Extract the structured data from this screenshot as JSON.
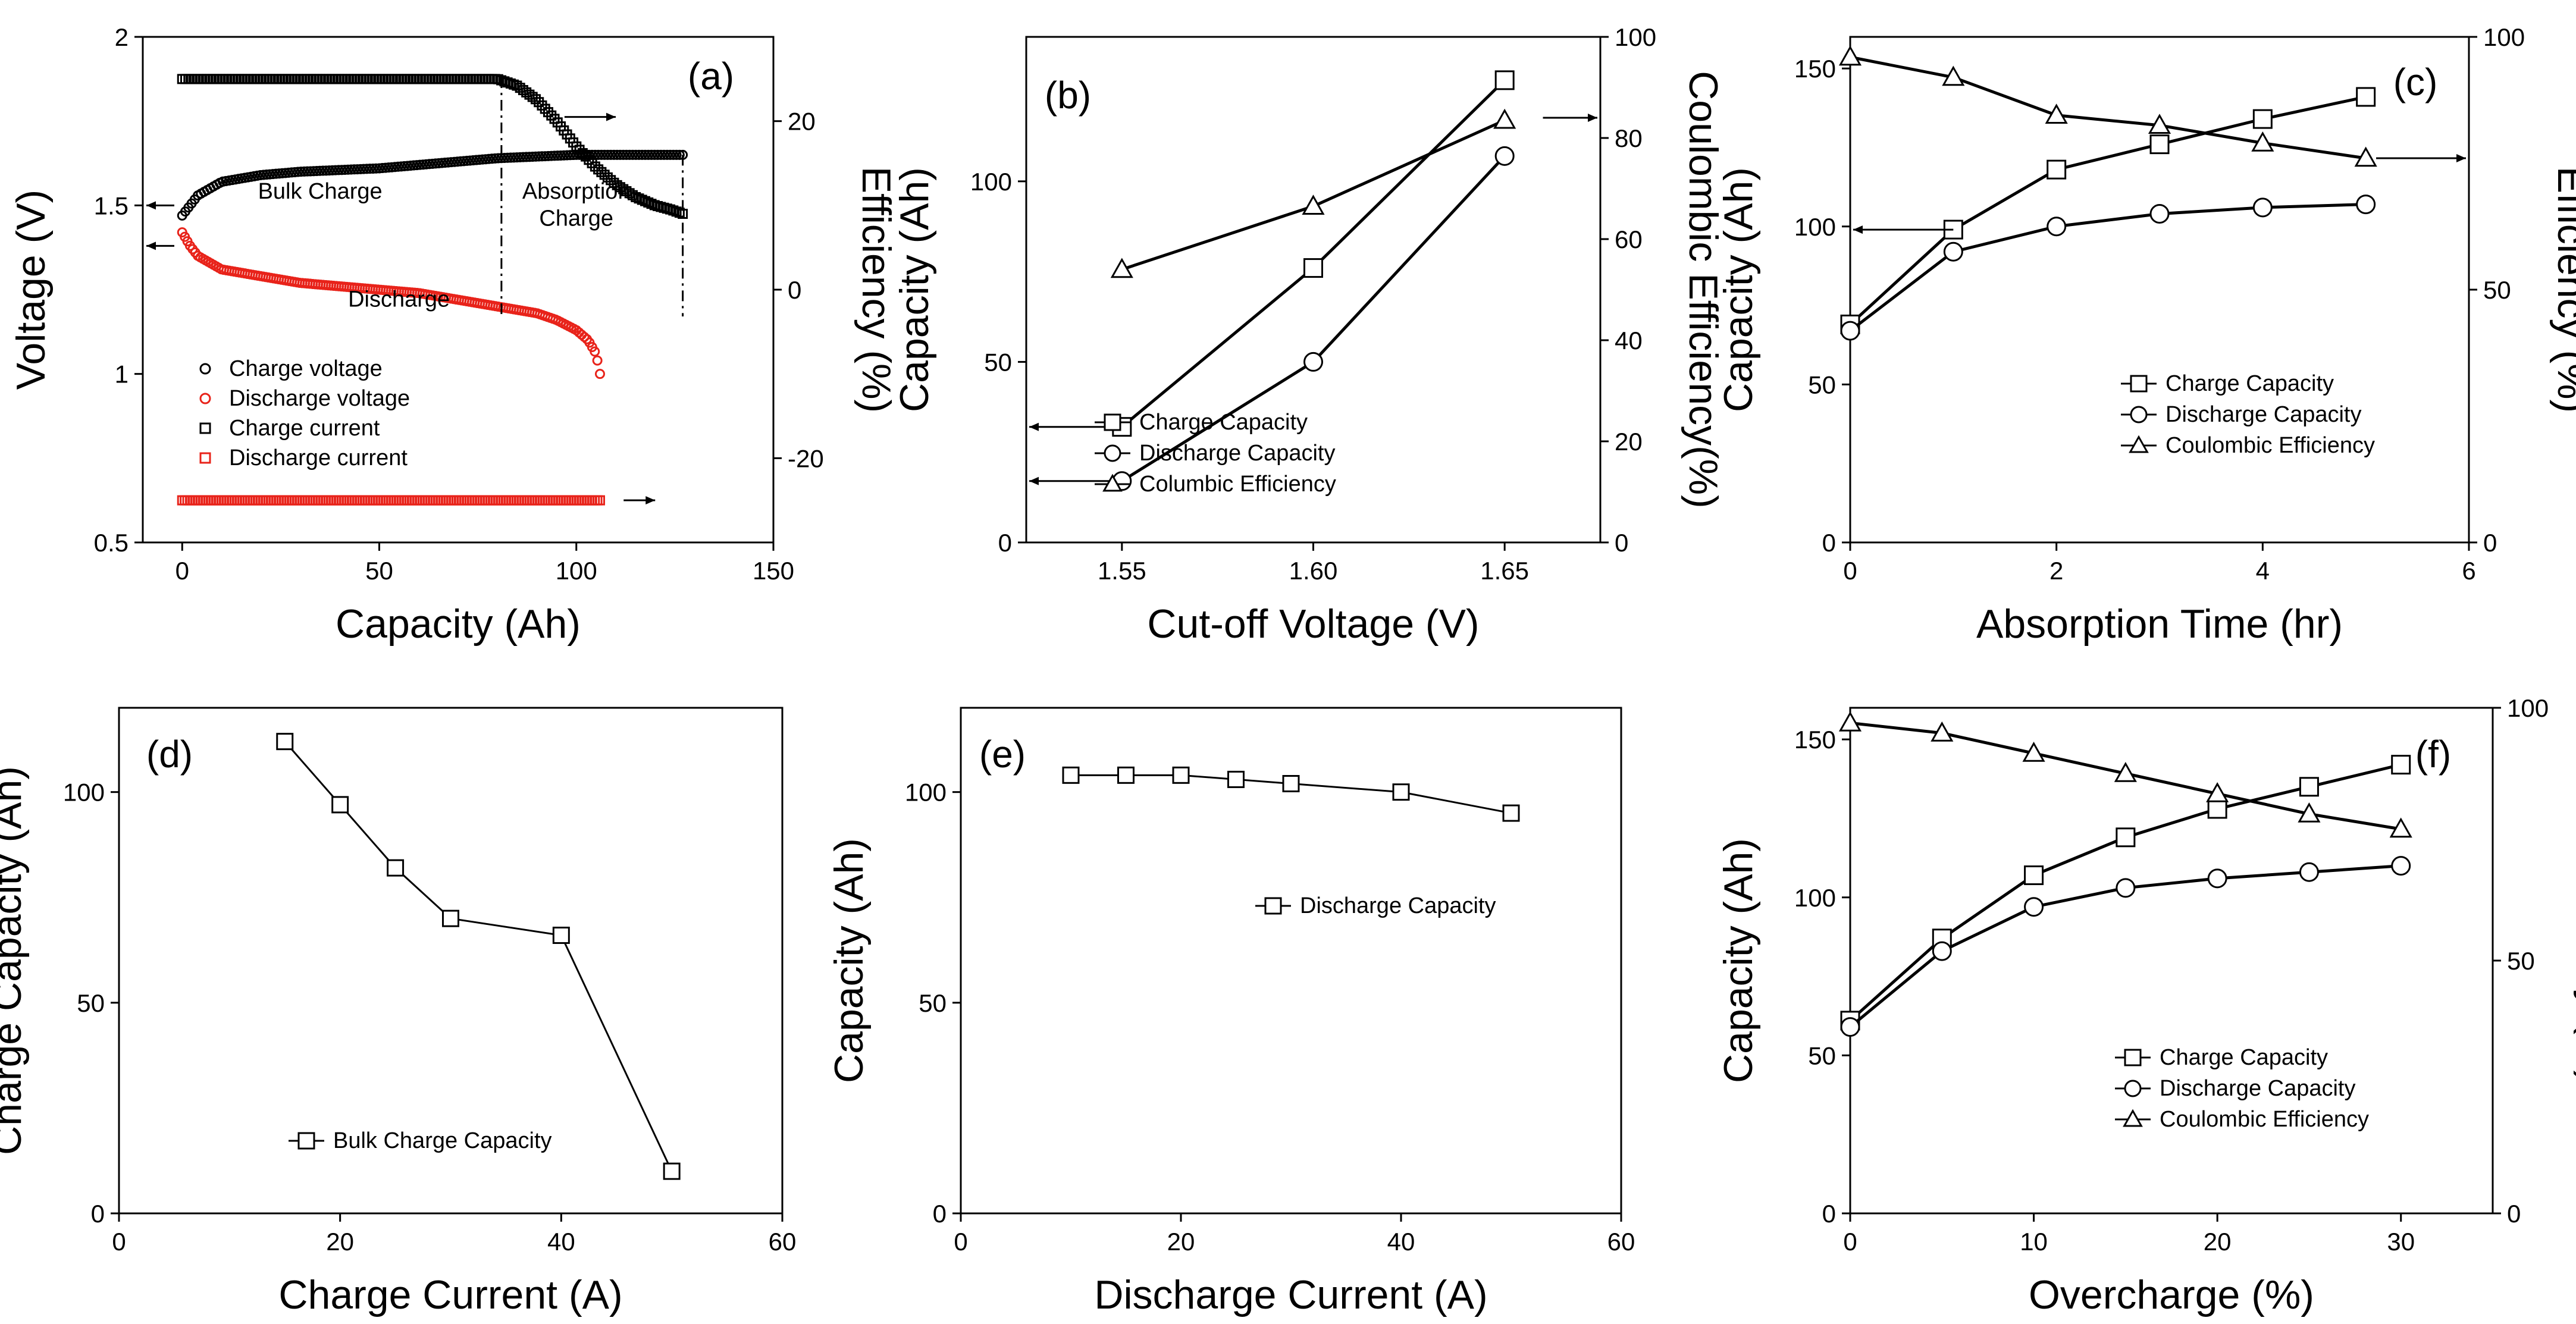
{
  "chart_data": [
    {
      "panel": "(a)",
      "type": "scatter",
      "xlabel": "Capacity (Ah)",
      "ylabel": "Voltage (V)",
      "y2label": "Efficiency (%)",
      "xlim": [
        -10,
        150
      ],
      "xticks": [
        0,
        50,
        100,
        150
      ],
      "ylim": [
        0.5,
        2.0
      ],
      "yticks": [
        0.5,
        1.0,
        1.5,
        2.0
      ],
      "y2lim": [
        -30,
        30
      ],
      "y2ticks": [
        -20,
        0,
        20
      ],
      "legend": [
        "Charge voltage",
        "Discharge voltage",
        "Charge current",
        "Discharge current"
      ],
      "annotations": [
        "Bulk Charge",
        "Absorption",
        "Charge",
        "Discharge"
      ],
      "series": [
        {
          "name": "Charge voltage",
          "marker": "circle",
          "color": "#000000",
          "axis": "left",
          "x": [
            0,
            2,
            4,
            7,
            10,
            15,
            20,
            30,
            40,
            50,
            60,
            70,
            80,
            90,
            100,
            110,
            120,
            127
          ],
          "y": [
            1.47,
            1.5,
            1.53,
            1.55,
            1.57,
            1.58,
            1.59,
            1.6,
            1.605,
            1.61,
            1.62,
            1.63,
            1.64,
            1.645,
            1.65,
            1.65,
            1.65,
            1.65
          ]
        },
        {
          "name": "Discharge voltage",
          "marker": "circle",
          "color": "#e8231a",
          "axis": "left",
          "x": [
            0,
            2,
            4,
            7,
            10,
            15,
            20,
            30,
            40,
            50,
            60,
            70,
            80,
            90,
            95,
            100,
            103,
            105,
            106
          ],
          "y": [
            1.42,
            1.38,
            1.35,
            1.33,
            1.31,
            1.3,
            1.29,
            1.27,
            1.26,
            1.25,
            1.24,
            1.22,
            1.2,
            1.18,
            1.16,
            1.13,
            1.1,
            1.06,
            1.0
          ]
        },
        {
          "name": "Charge current",
          "marker": "square",
          "color": "#000000",
          "axis": "right",
          "x": [
            0,
            10,
            20,
            30,
            40,
            50,
            60,
            70,
            80,
            85,
            90,
            95,
            100,
            105,
            110,
            115,
            120,
            124,
            127
          ],
          "y": [
            25,
            25,
            25,
            25,
            25,
            25,
            25,
            25,
            25,
            24.2,
            22.5,
            20,
            17,
            14.5,
            12.5,
            11,
            10,
            9.5,
            9
          ]
        },
        {
          "name": "Discharge current",
          "marker": "square",
          "color": "#e8231a",
          "axis": "right",
          "x": [
            0,
            10,
            20,
            30,
            40,
            50,
            60,
            70,
            80,
            90,
            100,
            106
          ],
          "y": [
            -25,
            -25,
            -25,
            -25,
            -25,
            -25,
            -25,
            -25,
            -25,
            -25,
            -25,
            -25
          ]
        }
      ]
    },
    {
      "panel": "(b)",
      "type": "line",
      "xlabel": "Cut-off Voltage (V)",
      "ylabel": "Capacity (Ah)",
      "y2label": "Coulombic Efficiency(%)",
      "xlim": [
        1.525,
        1.675
      ],
      "xticks": [
        "1.55",
        "1.60",
        "1.65"
      ],
      "ylim": [
        0,
        140
      ],
      "yticks": [
        0,
        50,
        100
      ],
      "y2lim": [
        0,
        100
      ],
      "y2ticks": [
        0,
        20,
        40,
        60,
        80,
        100
      ],
      "legend": [
        "Charge Capacity",
        "Discharge Capacity",
        "Columbic Efficiency"
      ],
      "x": [
        1.55,
        1.6,
        1.65
      ],
      "series": [
        {
          "name": "Charge Capacity",
          "marker": "square",
          "axis": "left",
          "values": [
            32,
            76,
            128
          ]
        },
        {
          "name": "Discharge Capacity",
          "marker": "circle",
          "axis": "left",
          "values": [
            17,
            50,
            107
          ]
        },
        {
          "name": "Columbic Efficiency",
          "marker": "triangle",
          "axis": "right",
          "values": [
            54,
            66.5,
            83.5
          ]
        }
      ]
    },
    {
      "panel": "(c)",
      "type": "line",
      "xlabel": "Absorption Time (hr)",
      "ylabel": "Capacity (Ah)",
      "y2label": "Efficiency (%)",
      "xlim": [
        0,
        6
      ],
      "xticks": [
        0,
        2,
        4,
        6
      ],
      "ylim": [
        0,
        160
      ],
      "yticks": [
        0,
        50,
        100,
        150
      ],
      "y2lim": [
        0,
        100
      ],
      "y2ticks": [
        0,
        50,
        100
      ],
      "legend": [
        "Charge Capacity",
        "Discharge Capacity",
        "Coulombic Efficiency"
      ],
      "x": [
        0,
        1,
        2,
        3,
        4,
        5
      ],
      "series": [
        {
          "name": "Charge Capacity",
          "marker": "square",
          "axis": "left",
          "values": [
            69,
            99,
            118,
            126,
            134,
            141
          ]
        },
        {
          "name": "Discharge Capacity",
          "marker": "circle",
          "axis": "left",
          "values": [
            67,
            92,
            100,
            104,
            106,
            107
          ]
        },
        {
          "name": "Coulombic Efficiency",
          "marker": "triangle",
          "axis": "right",
          "values": [
            96,
            92,
            84.5,
            82.5,
            79,
            76
          ]
        }
      ]
    },
    {
      "panel": "(d)",
      "type": "line",
      "xlabel": "Charge Current (A)",
      "ylabel": "Charge Capacity (Ah)",
      "xlim": [
        0,
        60
      ],
      "xticks": [
        0,
        20,
        40,
        60
      ],
      "ylim": [
        0,
        120
      ],
      "yticks": [
        0,
        50,
        100
      ],
      "legend": [
        "Bulk Charge Capacity"
      ],
      "x": [
        15,
        20,
        25,
        30,
        40,
        50
      ],
      "series": [
        {
          "name": "Bulk Charge Capacity",
          "marker": "square",
          "axis": "left",
          "values": [
            112,
            97,
            82,
            70,
            66,
            10
          ]
        }
      ]
    },
    {
      "panel": "(e)",
      "type": "line",
      "xlabel": "Discharge Current (A)",
      "ylabel": "Capacity (Ah)",
      "xlim": [
        0,
        60
      ],
      "xticks": [
        0,
        20,
        40,
        60
      ],
      "ylim": [
        0,
        120
      ],
      "yticks": [
        0,
        50,
        100
      ],
      "legend": [
        "Discharge Capacity"
      ],
      "x": [
        10,
        15,
        20,
        25,
        30,
        40,
        50
      ],
      "series": [
        {
          "name": "Discharge Capacity",
          "marker": "square",
          "axis": "left",
          "values": [
            104,
            104,
            104,
            103,
            102,
            100,
            95
          ]
        }
      ]
    },
    {
      "panel": "(f)",
      "type": "line",
      "xlabel": "Overcharge (%)",
      "ylabel": "Capacity (Ah)",
      "y2label": "Efficiency (%)",
      "xlim": [
        0,
        35
      ],
      "xticks": [
        0,
        10,
        20,
        30
      ],
      "ylim": [
        0,
        160
      ],
      "yticks": [
        0,
        50,
        100,
        150
      ],
      "y2lim": [
        0,
        100
      ],
      "y2ticks": [
        0,
        50,
        100
      ],
      "legend": [
        "Charge Capacity",
        "Discharge Capacity",
        "Coulombic Efficiency"
      ],
      "x": [
        0,
        5,
        10,
        15,
        20,
        25,
        30
      ],
      "series": [
        {
          "name": "Charge Capacity",
          "marker": "square",
          "axis": "left",
          "values": [
            61,
            87,
            107,
            119,
            128,
            135,
            142
          ]
        },
        {
          "name": "Discharge Capacity",
          "marker": "circle",
          "axis": "left",
          "values": [
            59,
            83,
            97,
            103,
            106,
            108,
            110
          ]
        },
        {
          "name": "Coulombic Efficiency",
          "marker": "triangle",
          "axis": "right",
          "values": [
            97,
            95,
            91,
            87,
            83,
            79,
            76
          ]
        }
      ]
    }
  ]
}
